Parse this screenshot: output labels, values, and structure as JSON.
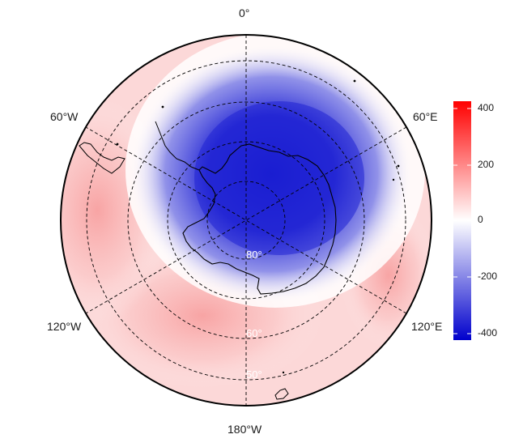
{
  "map": {
    "projection": "south-polar stereographic",
    "longitude_labels": [
      "0°",
      "60°E",
      "120°E",
      "180°W",
      "120°W",
      "60°W"
    ],
    "latitude_labels": [
      "80°",
      "60°",
      "50°"
    ],
    "colors": {
      "low": "#0000cc",
      "mid": "#ffffff",
      "high": "#ff0000",
      "coastline": "#000000",
      "graticule": "#000000"
    }
  },
  "colorbar": {
    "min": -420,
    "max": 420,
    "ticks": [
      "400",
      "200",
      "0",
      "-200",
      "-400"
    ]
  }
}
